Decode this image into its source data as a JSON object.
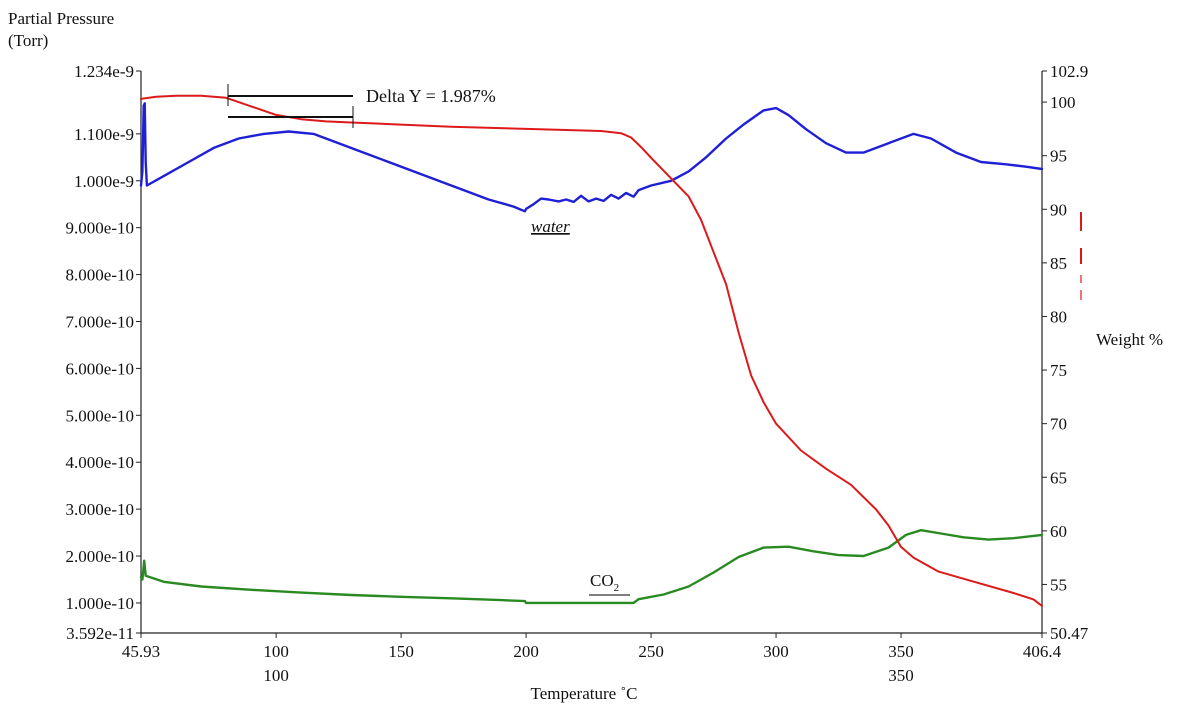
{
  "chart_data": {
    "type": "line",
    "left_axis_label_line1": "Partial Pressure",
    "left_axis_label_line2": "(Torr)",
    "right_axis_label": "Weight %",
    "xlabel": "Temperature ˚C",
    "x_range": [
      45.93,
      406.4
    ],
    "y_left_range": [
      3.592e-11,
      1.234e-09
    ],
    "y_right_range": [
      50.47,
      102.9
    ],
    "x_ticks": [
      {
        "value": 45.93,
        "label": "45.93"
      },
      {
        "value": 100,
        "label": "100"
      },
      {
        "value": 150,
        "label": "150"
      },
      {
        "value": 200,
        "label": "200"
      },
      {
        "value": 250,
        "label": "250"
      },
      {
        "value": 300,
        "label": "300"
      },
      {
        "value": 350,
        "label": "350"
      },
      {
        "value": 406.4,
        "label": "406.4"
      }
    ],
    "x_secondary_labels": [
      {
        "value": 100,
        "label": "100"
      },
      {
        "value": 350,
        "label": "350"
      }
    ],
    "y_left_ticks": [
      {
        "value": 1.234e-09,
        "label": "1.234e-9"
      },
      {
        "value": 1.1e-09,
        "label": "1.100e-9"
      },
      {
        "value": 1e-09,
        "label": "1.000e-9"
      },
      {
        "value": 9e-10,
        "label": "9.000e-10"
      },
      {
        "value": 8e-10,
        "label": "8.000e-10"
      },
      {
        "value": 7e-10,
        "label": "7.000e-10"
      },
      {
        "value": 6e-10,
        "label": "6.000e-10"
      },
      {
        "value": 5e-10,
        "label": "5.000e-10"
      },
      {
        "value": 4e-10,
        "label": "4.000e-10"
      },
      {
        "value": 3e-10,
        "label": "3.000e-10"
      },
      {
        "value": 2e-10,
        "label": "2.000e-10"
      },
      {
        "value": 1e-10,
        "label": "1.000e-10"
      },
      {
        "value": 3.592e-11,
        "label": "3.592e-11"
      }
    ],
    "y_right_ticks": [
      {
        "value": 102.9,
        "label": "102.9"
      },
      {
        "value": 100,
        "label": "100"
      },
      {
        "value": 95,
        "label": "95"
      },
      {
        "value": 90,
        "label": "90"
      },
      {
        "value": 85,
        "label": "85"
      },
      {
        "value": 80,
        "label": "80"
      },
      {
        "value": 75,
        "label": "75"
      },
      {
        "value": 70,
        "label": "70"
      },
      {
        "value": 65,
        "label": "65"
      },
      {
        "value": 60,
        "label": "60"
      },
      {
        "value": 55,
        "label": "55"
      },
      {
        "value": 50.47,
        "label": "50.47"
      }
    ],
    "series": [
      {
        "name": "water",
        "axis": "left",
        "color": "#1f1fd6",
        "points": [
          [
            45.93,
            9.9e-10
          ],
          [
            46.5,
            1.02e-09
          ],
          [
            47.0,
            1.16e-09
          ],
          [
            47.4,
            1.165e-09
          ],
          [
            47.8,
            1.04e-09
          ],
          [
            48.3,
            9.9e-10
          ],
          [
            55,
            1.01e-09
          ],
          [
            65,
            1.04e-09
          ],
          [
            75,
            1.07e-09
          ],
          [
            85,
            1.09e-09
          ],
          [
            95,
            1.1e-09
          ],
          [
            105,
            1.105e-09
          ],
          [
            115,
            1.1e-09
          ],
          [
            125,
            1.08e-09
          ],
          [
            135,
            1.06e-09
          ],
          [
            145,
            1.04e-09
          ],
          [
            155,
            1.02e-09
          ],
          [
            165,
            1e-09
          ],
          [
            175,
            9.8e-10
          ],
          [
            185,
            9.6e-10
          ],
          [
            195,
            9.45e-10
          ],
          [
            199.5,
            9.35e-10
          ],
          [
            200,
            9.4e-10
          ],
          [
            203,
            9.5e-10
          ],
          [
            206,
            9.62e-10
          ],
          [
            209,
            9.6e-10
          ],
          [
            213,
            9.56e-10
          ],
          [
            216,
            9.6e-10
          ],
          [
            219,
            9.55e-10
          ],
          [
            222,
            9.68e-10
          ],
          [
            225,
            9.56e-10
          ],
          [
            228,
            9.62e-10
          ],
          [
            231,
            9.57e-10
          ],
          [
            234,
            9.7e-10
          ],
          [
            237,
            9.62e-10
          ],
          [
            240,
            9.74e-10
          ],
          [
            243,
            9.66e-10
          ],
          [
            245,
            9.8e-10
          ],
          [
            250,
            9.9e-10
          ],
          [
            258,
            1e-09
          ],
          [
            265,
            1.02e-09
          ],
          [
            272,
            1.05e-09
          ],
          [
            280,
            1.09e-09
          ],
          [
            287,
            1.12e-09
          ],
          [
            295,
            1.15e-09
          ],
          [
            300,
            1.155e-09
          ],
          [
            305,
            1.14e-09
          ],
          [
            312,
            1.11e-09
          ],
          [
            320,
            1.08e-09
          ],
          [
            328,
            1.06e-09
          ],
          [
            335,
            1.06e-09
          ],
          [
            345,
            1.08e-09
          ],
          [
            355,
            1.1e-09
          ],
          [
            362,
            1.09e-09
          ],
          [
            372,
            1.06e-09
          ],
          [
            382,
            1.04e-09
          ],
          [
            392,
            1.035e-09
          ],
          [
            400,
            1.03e-09
          ],
          [
            406.4,
            1.025e-09
          ]
        ]
      },
      {
        "name": "CO2",
        "axis": "left",
        "color": "#2a8a22",
        "points": [
          [
            45.93,
            1.55e-10
          ],
          [
            46.5,
            1.5e-10
          ],
          [
            47.2,
            1.9e-10
          ],
          [
            47.8,
            1.58e-10
          ],
          [
            55,
            1.45e-10
          ],
          [
            70,
            1.35e-10
          ],
          [
            90,
            1.28e-10
          ],
          [
            110,
            1.22e-10
          ],
          [
            130,
            1.17e-10
          ],
          [
            150,
            1.13e-10
          ],
          [
            170,
            1.1e-10
          ],
          [
            190,
            1.06e-10
          ],
          [
            199.5,
            1.04e-10
          ],
          [
            200,
            1e-10
          ],
          [
            243,
            1e-10
          ],
          [
            245,
            1.08e-10
          ],
          [
            255,
            1.18e-10
          ],
          [
            265,
            1.35e-10
          ],
          [
            275,
            1.65e-10
          ],
          [
            285,
            1.98e-10
          ],
          [
            295,
            2.18e-10
          ],
          [
            305,
            2.2e-10
          ],
          [
            315,
            2.1e-10
          ],
          [
            325,
            2.02e-10
          ],
          [
            335,
            2e-10
          ],
          [
            345,
            2.18e-10
          ],
          [
            352,
            2.45e-10
          ],
          [
            358,
            2.55e-10
          ],
          [
            366,
            2.48e-10
          ],
          [
            375,
            2.4e-10
          ],
          [
            385,
            2.35e-10
          ],
          [
            395,
            2.38e-10
          ],
          [
            406.4,
            2.45e-10
          ]
        ]
      },
      {
        "name": "weight",
        "axis": "right",
        "color": "#dc1a1a",
        "points": [
          [
            45.93,
            100.3
          ],
          [
            52,
            100.5
          ],
          [
            60,
            100.6
          ],
          [
            70,
            100.6
          ],
          [
            80,
            100.4
          ],
          [
            90,
            99.6
          ],
          [
            100,
            98.8
          ],
          [
            110,
            98.4
          ],
          [
            120,
            98.2
          ],
          [
            130,
            98.1
          ],
          [
            150,
            97.9
          ],
          [
            170,
            97.7
          ],
          [
            200,
            97.5
          ],
          [
            230,
            97.3
          ],
          [
            238,
            97.1
          ],
          [
            242,
            96.7
          ],
          [
            246,
            95.8
          ],
          [
            250,
            94.8
          ],
          [
            255,
            93.6
          ],
          [
            260,
            92.4
          ],
          [
            265,
            91.2
          ],
          [
            270,
            89.0
          ],
          [
            275,
            86.0
          ],
          [
            280,
            83.0
          ],
          [
            285,
            78.5
          ],
          [
            290,
            74.5
          ],
          [
            295,
            72.0
          ],
          [
            300,
            70.0
          ],
          [
            310,
            67.5
          ],
          [
            320,
            65.8
          ],
          [
            330,
            64.3
          ],
          [
            340,
            62.0
          ],
          [
            345,
            60.5
          ],
          [
            350,
            58.5
          ],
          [
            355,
            57.5
          ],
          [
            365,
            56.2
          ],
          [
            380,
            55.2
          ],
          [
            395,
            54.2
          ],
          [
            403,
            53.6
          ],
          [
            406.4,
            53.0
          ]
        ]
      }
    ],
    "annotations": {
      "water_label": "water",
      "co2_main": "CO",
      "co2_sub": "2",
      "delta_label": "Delta Y = 1.987%"
    }
  }
}
